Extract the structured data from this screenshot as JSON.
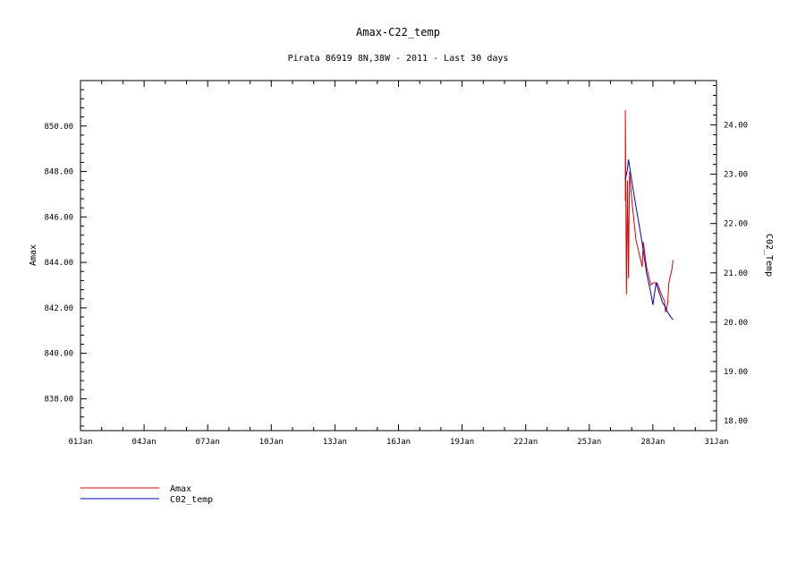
{
  "chart_data": {
    "type": "line",
    "title": "Amax-C22_temp",
    "subtitle": "Pirata 86919 8N,38W - 2011 - Last 30 days",
    "xlabel": "",
    "x_ticks": [
      "01Jan",
      "04Jan",
      "07Jan",
      "10Jan",
      "13Jan",
      "16Jan",
      "19Jan",
      "22Jan",
      "25Jan",
      "28Jan",
      "31Jan"
    ],
    "xlim": [
      1,
      31
    ],
    "y_left": {
      "label": "Amax",
      "ticks": [
        "838.00",
        "840.00",
        "842.00",
        "844.00",
        "846.00",
        "848.00",
        "850.00"
      ],
      "ylim": [
        836.6,
        852.0
      ]
    },
    "y_right": {
      "label": "C02_Temp",
      "ticks": [
        "18.00",
        "19.00",
        "20.00",
        "21.00",
        "22.00",
        "23.00",
        "24.00"
      ],
      "ylim": [
        17.8,
        24.9
      ]
    },
    "grid": false,
    "legend_position": "bottom-left",
    "series": [
      {
        "name": "Amax",
        "axis": "left",
        "color": "#e00000",
        "points": [
          [
            26.7,
            846.7
          ],
          [
            26.7,
            850.7
          ],
          [
            26.75,
            842.6
          ],
          [
            26.8,
            847.6
          ],
          [
            26.85,
            843.3
          ],
          [
            26.9,
            848.0
          ],
          [
            27.0,
            846.8
          ],
          [
            27.2,
            845.0
          ],
          [
            27.4,
            844.2
          ],
          [
            27.5,
            843.8
          ],
          [
            27.55,
            844.9
          ],
          [
            27.7,
            843.8
          ],
          [
            27.8,
            843.4
          ],
          [
            27.9,
            843.0
          ],
          [
            28.0,
            843.1
          ],
          [
            28.2,
            843.1
          ],
          [
            28.4,
            842.6
          ],
          [
            28.55,
            842.3
          ],
          [
            28.6,
            841.8
          ],
          [
            28.7,
            842.2
          ],
          [
            28.75,
            843.1
          ],
          [
            28.8,
            843.3
          ],
          [
            28.9,
            843.7
          ],
          [
            28.95,
            844.1
          ]
        ]
      },
      {
        "name": "C02_temp",
        "axis": "right",
        "color": "#0000c0",
        "points": [
          [
            26.7,
            22.9
          ],
          [
            26.8,
            23.1
          ],
          [
            26.85,
            23.3
          ],
          [
            27.1,
            22.6
          ],
          [
            27.3,
            22.1
          ],
          [
            27.5,
            21.6
          ],
          [
            27.7,
            21.0
          ],
          [
            27.9,
            20.6
          ],
          [
            28.0,
            20.35
          ],
          [
            28.15,
            20.8
          ],
          [
            28.3,
            20.6
          ],
          [
            28.45,
            20.4
          ],
          [
            28.6,
            20.3
          ],
          [
            28.7,
            20.2
          ],
          [
            28.85,
            20.1
          ],
          [
            28.95,
            20.05
          ]
        ]
      }
    ]
  }
}
